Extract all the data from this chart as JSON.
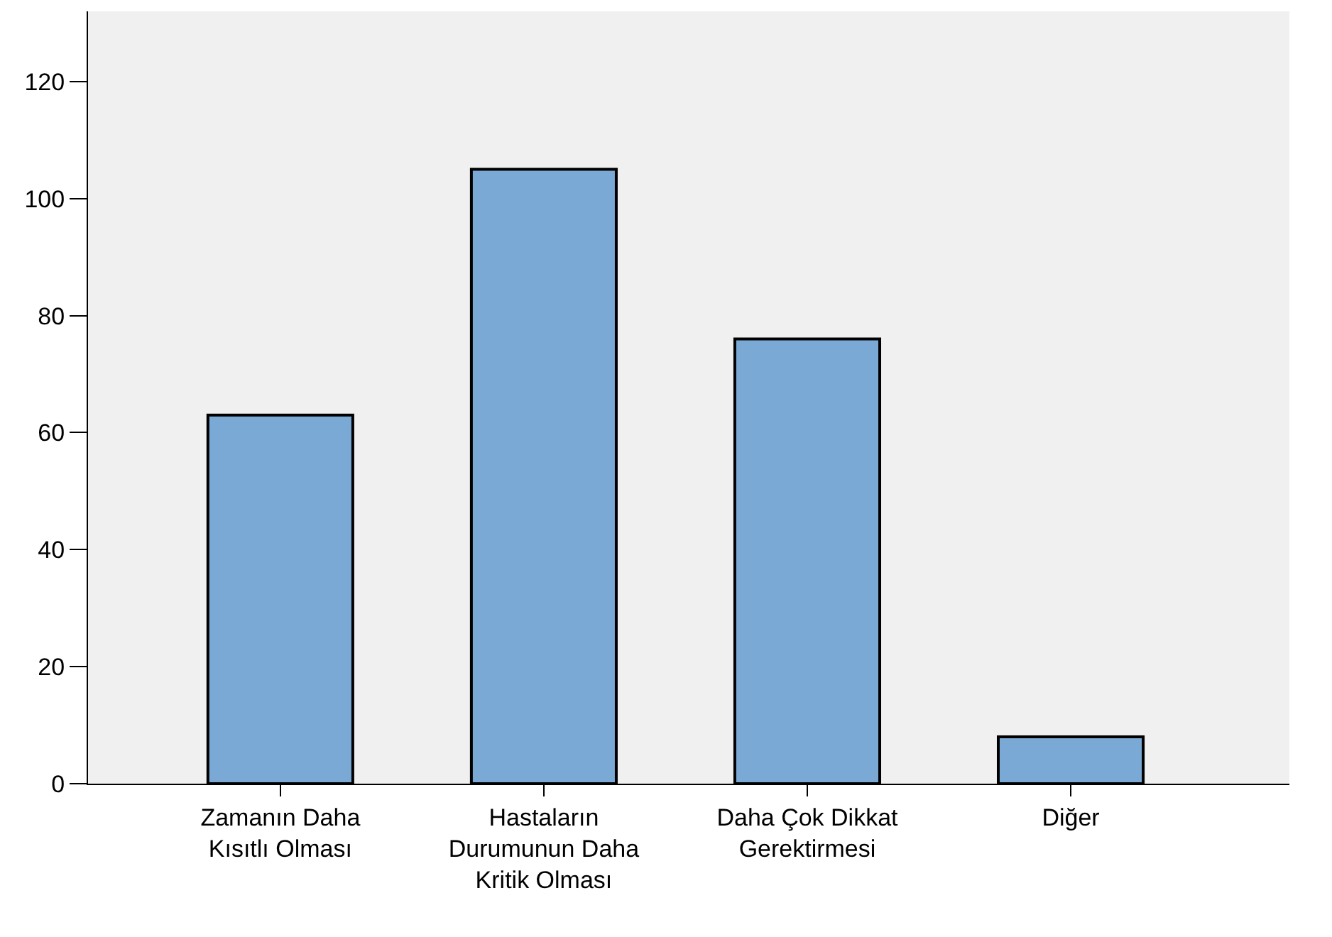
{
  "chart_data": {
    "type": "bar",
    "categories": [
      "Zamanın Daha Kısıtlı Olması",
      "Hastaların Durumunun Daha Kritik Olması",
      "Daha Çok Dikkat Gerektirmesi",
      "Diğer"
    ],
    "values": [
      63,
      105,
      76,
      8
    ],
    "color": "#7aa9d6",
    "ylim": [
      0,
      132
    ],
    "yticks": [
      0,
      20,
      40,
      60,
      80,
      100,
      120
    ],
    "grid": false
  }
}
